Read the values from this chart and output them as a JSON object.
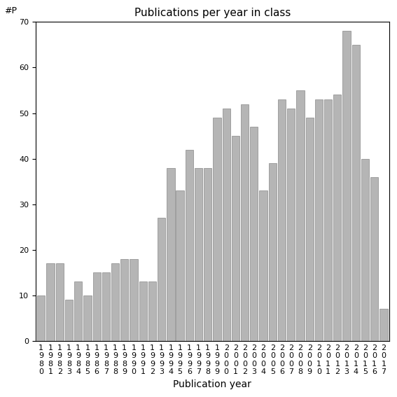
{
  "title": "Publications per year in class",
  "xlabel": "Publication year",
  "ylabel": "#P",
  "bar_color": "#b5b5b5",
  "bar_edgecolor": "#888888",
  "years": [
    1980,
    1981,
    1982,
    1983,
    1984,
    1985,
    1986,
    1987,
    1988,
    1989,
    1990,
    1991,
    1992,
    1993,
    1994,
    1995,
    1996,
    1997,
    1998,
    1999,
    2000,
    2001,
    2002,
    2003,
    2004,
    2005,
    2006,
    2007,
    2008,
    2009,
    2010,
    2011,
    2012,
    2013,
    2014,
    2015,
    2016,
    2017
  ],
  "values": [
    10,
    17,
    17,
    9,
    13,
    10,
    15,
    15,
    17,
    18,
    18,
    13,
    13,
    27,
    38,
    33,
    42,
    38,
    38,
    49,
    51,
    45,
    52,
    47,
    33,
    39,
    53,
    51,
    55,
    49,
    53,
    53,
    54,
    68,
    65,
    40,
    36,
    7
  ],
  "ylim": [
    0,
    70
  ],
  "yticks": [
    0,
    10,
    20,
    30,
    40,
    50,
    60,
    70
  ],
  "background_color": "#ffffff",
  "title_fontsize": 11,
  "axis_label_fontsize": 10,
  "ylabel_fontsize": 9,
  "tick_fontsize": 8
}
